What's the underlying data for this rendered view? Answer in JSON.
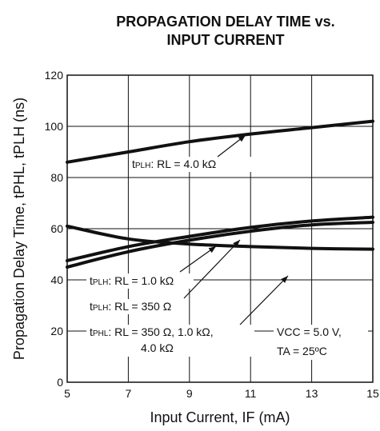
{
  "chart_data": {
    "type": "line",
    "title_line1": "PROPAGATION DELAY TIME vs.",
    "title_line2": "INPUT CURRENT",
    "xlabel": "Input Current, IF (mA)",
    "ylabel": "Propagation Delay Time, tPHL, tPLH (ns)",
    "xlim": [
      5,
      15
    ],
    "ylim": [
      0,
      120
    ],
    "xticks": [
      5,
      7,
      9,
      11,
      13,
      15
    ],
    "yticks": [
      0,
      20,
      40,
      60,
      80,
      100,
      120
    ],
    "grid": true,
    "conditions": [
      "VCC = 5.0 V,",
      "TA = 25ºC"
    ],
    "series": [
      {
        "name": "tPLH: RL = 4.0 kΩ",
        "x": [
          5,
          7,
          9,
          11,
          13,
          15
        ],
        "values": [
          86,
          90,
          94,
          97,
          99.5,
          102
        ]
      },
      {
        "name": "tPLH: RL = 1.0 kΩ",
        "x": [
          5,
          7,
          9,
          11,
          13,
          15
        ],
        "values": [
          47.5,
          53,
          57,
          60.5,
          63,
          64.5
        ]
      },
      {
        "name": "tPLH: RL = 350 Ω",
        "x": [
          5,
          7,
          9,
          11,
          13,
          15
        ],
        "values": [
          45,
          51,
          55.5,
          59,
          61.5,
          62.5
        ]
      },
      {
        "name": "tPHL: RL = 350 Ω, 1.0 kΩ, 4.0 kΩ",
        "x": [
          5,
          7,
          9,
          11,
          13,
          15
        ],
        "values": [
          61,
          56,
          54,
          53,
          52.3,
          52
        ]
      }
    ]
  },
  "annotations": {
    "plh_4k": {
      "prefix": "tPLH",
      "rest": ": RL = 4.0 kΩ"
    },
    "plh_1k": {
      "prefix": "tPLH",
      "rest": ": RL = 1.0 kΩ"
    },
    "plh_350": {
      "prefix": "tPLH",
      "rest": ": RL = 350 Ω"
    },
    "phl_all_1": {
      "prefix": "tPHL",
      "rest": ": RL = 350 Ω, 1.0 kΩ,"
    },
    "phl_all_2": "4.0 kΩ"
  }
}
